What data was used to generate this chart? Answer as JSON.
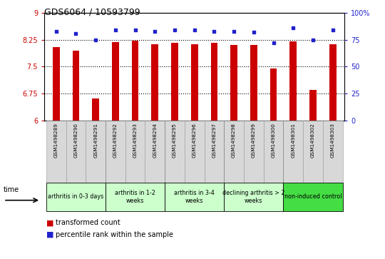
{
  "title": "GDS6064 / 10593799",
  "samples": [
    "GSM1498289",
    "GSM1498290",
    "GSM1498291",
    "GSM1498292",
    "GSM1498293",
    "GSM1498294",
    "GSM1498295",
    "GSM1498296",
    "GSM1498297",
    "GSM1498298",
    "GSM1498299",
    "GSM1498300",
    "GSM1498301",
    "GSM1498302",
    "GSM1498303"
  ],
  "transformed_count": [
    8.05,
    7.95,
    6.62,
    8.18,
    8.22,
    8.12,
    8.17,
    8.12,
    8.17,
    8.1,
    8.1,
    7.45,
    8.2,
    6.85,
    8.12
  ],
  "percentile_rank": [
    83,
    81,
    75,
    84,
    84,
    83,
    84,
    84,
    83,
    83,
    82,
    72,
    86,
    75,
    84
  ],
  "ylim_left": [
    6,
    9
  ],
  "ylim_right": [
    0,
    100
  ],
  "yticks_left": [
    6,
    6.75,
    7.5,
    8.25,
    9
  ],
  "yticks_right": [
    0,
    25,
    50,
    75,
    100
  ],
  "ytick_labels_left": [
    "6",
    "6.75",
    "7.5",
    "8.25",
    "9"
  ],
  "ytick_labels_right": [
    "0",
    "25",
    "50",
    "75",
    "100%"
  ],
  "bar_color": "#cc0000",
  "dot_color": "#2222cc",
  "bar_width": 0.35,
  "tick_color_left": "#cc0000",
  "tick_color_right": "#2222cc",
  "dotted_lines": [
    6.75,
    7.5,
    8.25
  ],
  "group_starts": [
    0,
    3,
    6,
    9,
    12
  ],
  "group_ends": [
    3,
    6,
    9,
    12,
    15
  ],
  "group_labels": [
    "arthritis in 0-3 days",
    "arthritis in 1-2\nweeks",
    "arthritis in 3-4\nweeks",
    "declining arthritis > 2\nweeks",
    "non-induced control"
  ],
  "group_colors": [
    "#ccffcc",
    "#ccffcc",
    "#ccffcc",
    "#ccffcc",
    "#44dd44"
  ],
  "group_boundaries": [
    3,
    6,
    9,
    12
  ]
}
